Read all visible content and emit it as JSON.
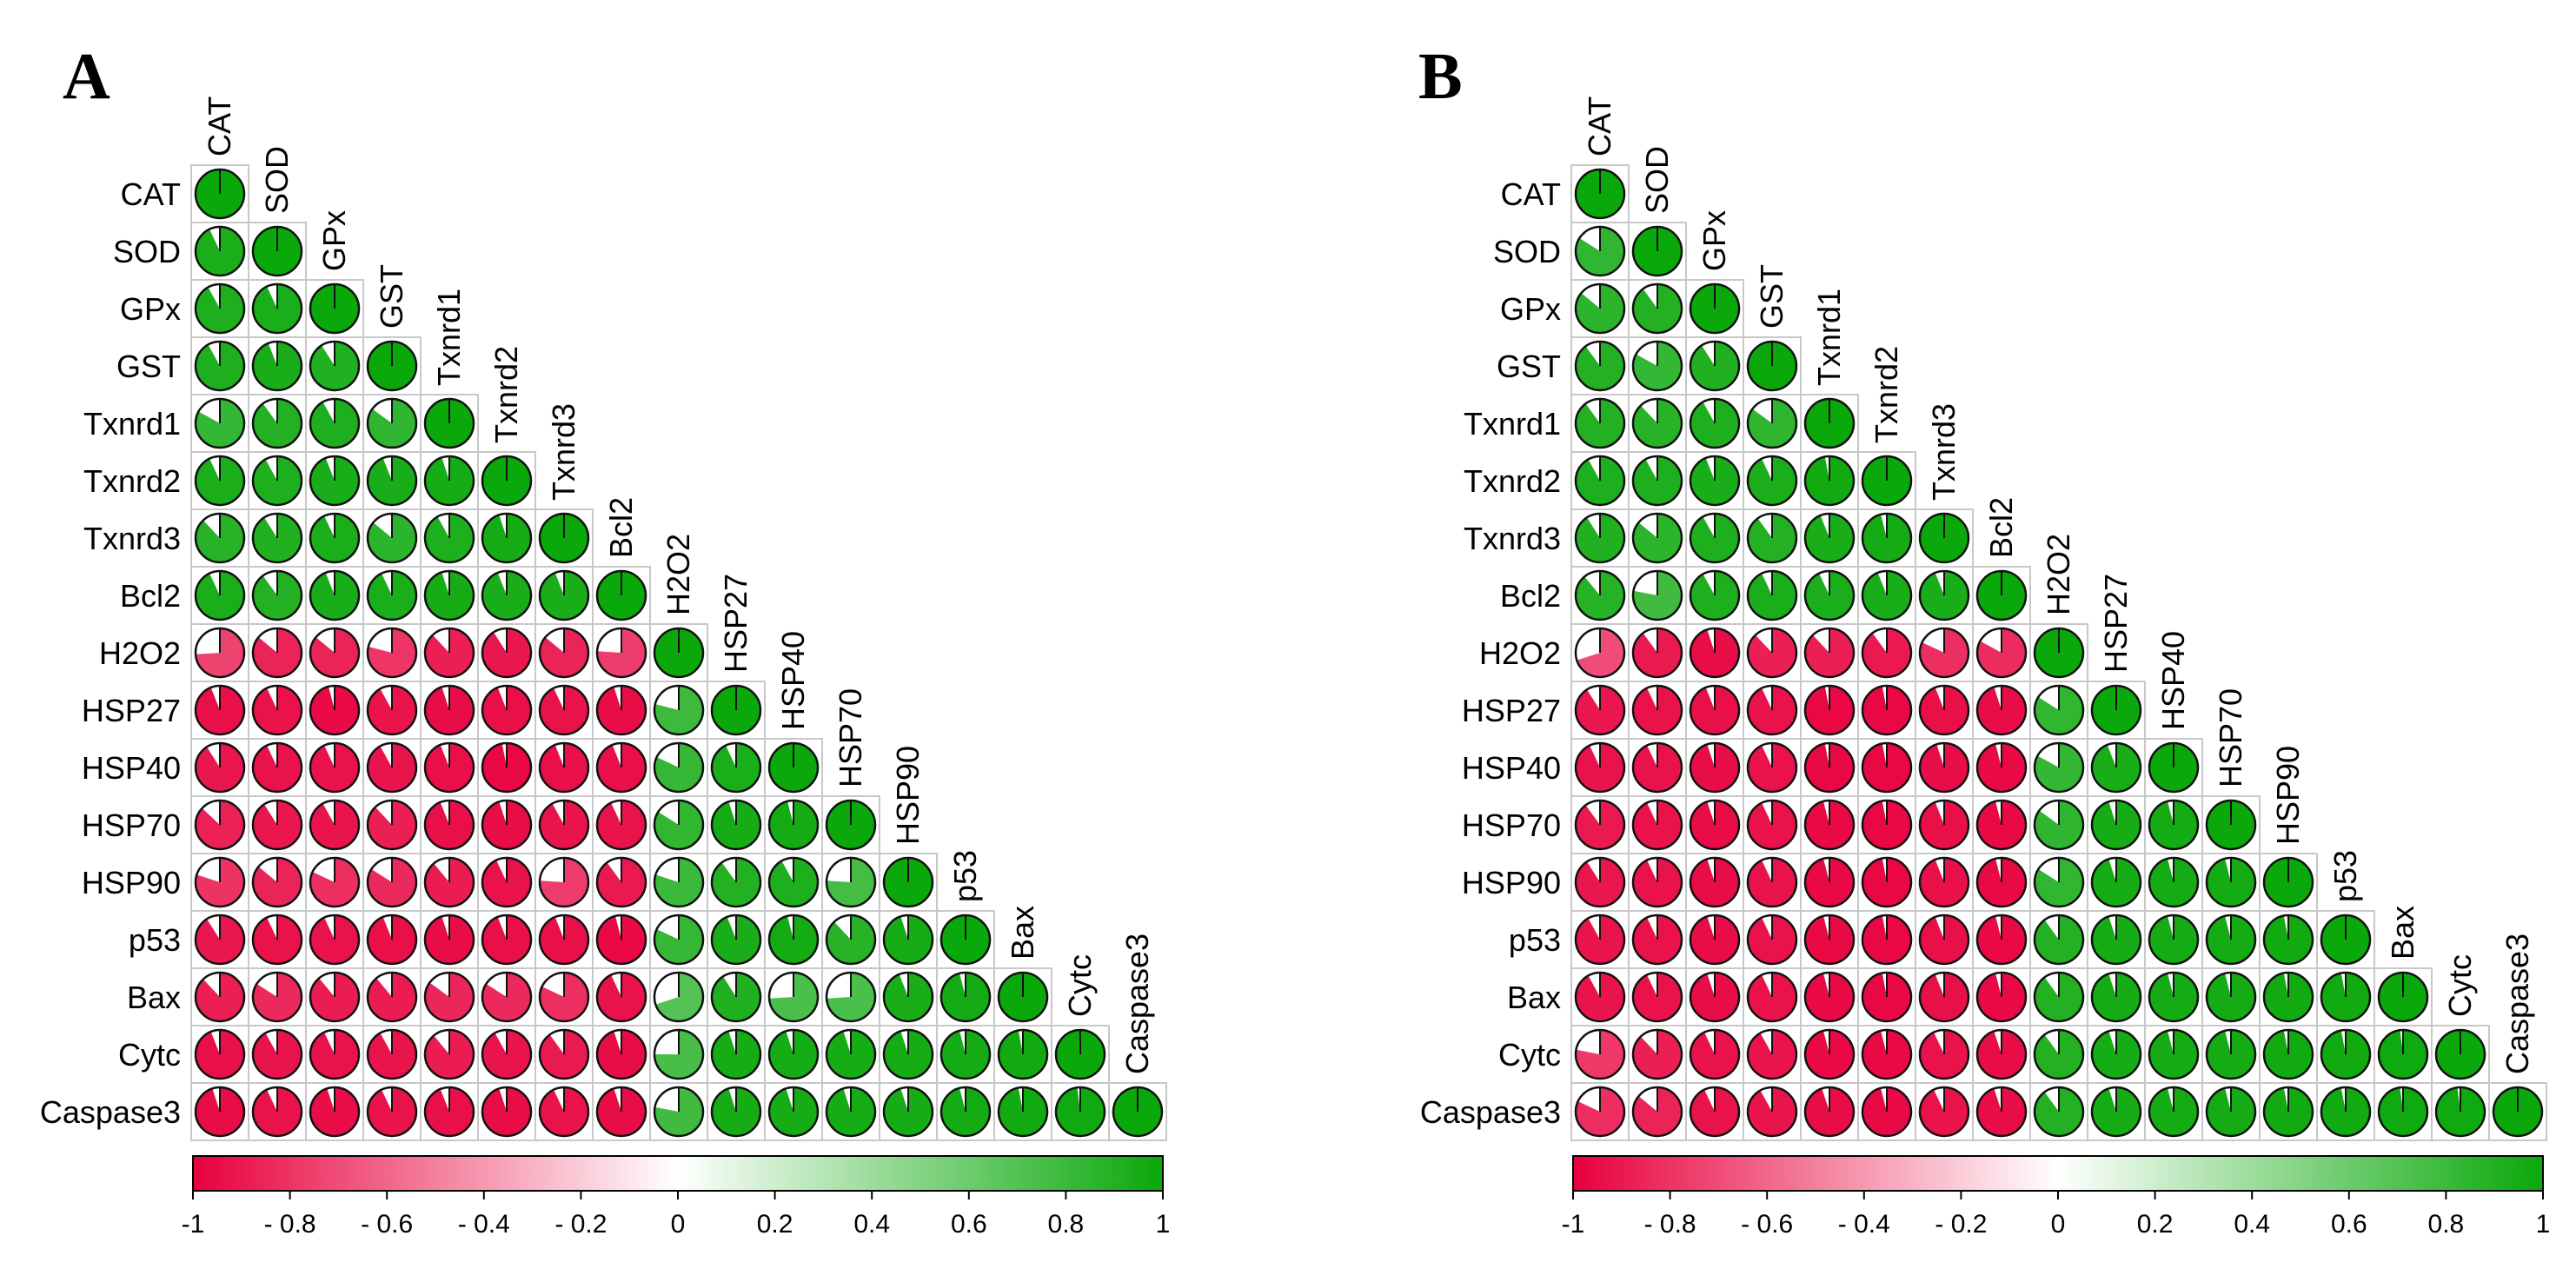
{
  "chart_data": [
    {
      "type": "heatmap",
      "subtype": "correlogram-pie-lower-triangle",
      "panel_label": "A",
      "variables": [
        "CAT",
        "SOD",
        "GPx",
        "GST",
        "Txnrd1",
        "Txnrd2",
        "Txnrd3",
        "Bcl2",
        "H2O2",
        "HSP27",
        "HSP40",
        "HSP70",
        "HSP90",
        "p53",
        "Bax",
        "Cytc",
        "Caspase3"
      ],
      "matrix": [
        [
          1
        ],
        [
          0.93,
          1
        ],
        [
          0.92,
          0.93,
          1
        ],
        [
          0.92,
          0.94,
          0.91,
          1
        ],
        [
          0.83,
          0.9,
          0.92,
          0.85,
          1
        ],
        [
          0.93,
          0.92,
          0.94,
          0.94,
          0.95,
          1
        ],
        [
          0.88,
          0.91,
          0.93,
          0.86,
          0.92,
          0.95,
          1
        ],
        [
          0.93,
          0.9,
          0.94,
          0.93,
          0.95,
          0.94,
          0.94,
          1
        ],
        [
          -0.74,
          -0.86,
          -0.86,
          -0.79,
          -0.88,
          -0.91,
          -0.86,
          -0.76,
          1
        ],
        [
          -0.94,
          -0.93,
          -0.96,
          -0.92,
          -0.95,
          -0.94,
          -0.93,
          -0.95,
          0.79,
          1
        ],
        [
          -0.91,
          -0.93,
          -0.93,
          -0.92,
          -0.94,
          -0.97,
          -0.94,
          -0.94,
          0.82,
          0.93,
          1
        ],
        [
          -0.87,
          -0.91,
          -0.92,
          -0.88,
          -0.94,
          -0.95,
          -0.92,
          -0.93,
          0.84,
          0.95,
          0.96,
          1
        ],
        [
          -0.8,
          -0.86,
          -0.82,
          -0.84,
          -0.89,
          -0.93,
          -0.76,
          -0.9,
          0.8,
          0.9,
          0.92,
          0.76,
          1
        ],
        [
          -0.91,
          -0.93,
          -0.93,
          -0.94,
          -0.95,
          -0.94,
          -0.94,
          -0.96,
          0.82,
          0.94,
          0.96,
          0.88,
          0.95,
          1
        ],
        [
          -0.88,
          -0.84,
          -0.89,
          -0.89,
          -0.85,
          -0.84,
          -0.82,
          -0.93,
          0.7,
          0.91,
          0.74,
          0.74,
          0.94,
          0.96,
          1
        ],
        [
          -0.94,
          -0.92,
          -0.93,
          -0.92,
          -0.89,
          -0.92,
          -0.9,
          -0.95,
          0.75,
          0.95,
          0.95,
          0.95,
          0.95,
          0.96,
          0.97,
          1
        ],
        [
          -0.95,
          -0.93,
          -0.95,
          -0.93,
          -0.94,
          -0.95,
          -0.93,
          -0.95,
          0.78,
          0.95,
          0.95,
          0.95,
          0.95,
          0.96,
          0.97,
          0.98,
          1
        ]
      ],
      "colorbar": {
        "min": -1,
        "max": 1,
        "ticks": [
          "-1",
          "- 0.8",
          "- 0.6",
          "- 0.4",
          "- 0.2",
          "0",
          "0.2",
          "0.4",
          "0.6",
          "0.8",
          "1"
        ],
        "colors": {
          "negative": "#e8003d",
          "neutral": "#ffffff",
          "positive": "#0aa80a"
        }
      }
    },
    {
      "type": "heatmap",
      "subtype": "correlogram-pie-lower-triangle",
      "panel_label": "B",
      "variables": [
        "CAT",
        "SOD",
        "GPx",
        "GST",
        "Txnrd1",
        "Txnrd2",
        "Txnrd3",
        "Bcl2",
        "H2O2",
        "HSP27",
        "HSP40",
        "HSP70",
        "HSP90",
        "p53",
        "Bax",
        "Cytc",
        "Caspase3"
      ],
      "matrix": [
        [
          1
        ],
        [
          0.84,
          1
        ],
        [
          0.86,
          0.9,
          1
        ],
        [
          0.9,
          0.83,
          0.91,
          1
        ],
        [
          0.9,
          0.88,
          0.92,
          0.85,
          1
        ],
        [
          0.92,
          0.92,
          0.94,
          0.93,
          0.97,
          1
        ],
        [
          0.91,
          0.86,
          0.92,
          0.9,
          0.94,
          0.96,
          1
        ],
        [
          0.89,
          0.78,
          0.92,
          0.93,
          0.93,
          0.94,
          0.94,
          1
        ],
        [
          -0.7,
          -0.9,
          -0.95,
          -0.88,
          -0.88,
          -0.9,
          -0.82,
          -0.83,
          1
        ],
        [
          -0.91,
          -0.93,
          -0.94,
          -0.93,
          -0.97,
          -0.97,
          -0.94,
          -0.95,
          0.84,
          1
        ],
        [
          -0.93,
          -0.93,
          -0.95,
          -0.93,
          -0.97,
          -0.97,
          -0.95,
          -0.96,
          0.83,
          0.94,
          1
        ],
        [
          -0.9,
          -0.93,
          -0.95,
          -0.93,
          -0.96,
          -0.97,
          -0.94,
          -0.96,
          0.85,
          0.95,
          0.96,
          1
        ],
        [
          -0.91,
          -0.93,
          -0.95,
          -0.93,
          -0.96,
          -0.97,
          -0.94,
          -0.96,
          0.84,
          0.95,
          0.96,
          0.96,
          1
        ],
        [
          -0.92,
          -0.93,
          -0.95,
          -0.93,
          -0.96,
          -0.97,
          -0.94,
          -0.96,
          0.9,
          0.95,
          0.96,
          0.96,
          0.97,
          1
        ],
        [
          -0.92,
          -0.93,
          -0.95,
          -0.93,
          -0.96,
          -0.97,
          -0.94,
          -0.96,
          0.9,
          0.95,
          0.96,
          0.96,
          0.97,
          0.97,
          1
        ],
        [
          -0.78,
          -0.88,
          -0.93,
          -0.92,
          -0.96,
          -0.96,
          -0.93,
          -0.95,
          0.9,
          0.95,
          0.96,
          0.96,
          0.97,
          0.97,
          0.98,
          1
        ],
        [
          -0.82,
          -0.86,
          -0.93,
          -0.92,
          -0.95,
          -0.96,
          -0.93,
          -0.95,
          0.9,
          0.95,
          0.96,
          0.96,
          0.97,
          0.97,
          0.98,
          0.98,
          1
        ]
      ],
      "colorbar": {
        "min": -1,
        "max": 1,
        "ticks": [
          "-1",
          "- 0.8",
          "- 0.6",
          "- 0.4",
          "- 0.2",
          "0",
          "0.2",
          "0.4",
          "0.6",
          "0.8",
          "1"
        ],
        "colors": {
          "negative": "#e8003d",
          "neutral": "#ffffff",
          "positive": "#0aa80a"
        }
      }
    }
  ]
}
